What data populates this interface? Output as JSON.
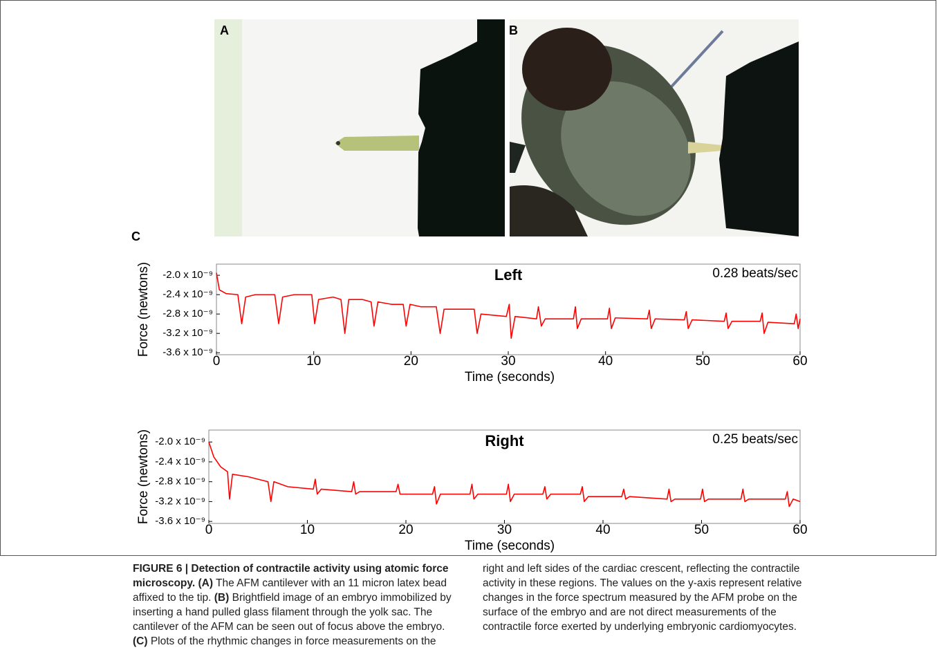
{
  "panels": {
    "a_label": "A",
    "b_label": "B",
    "c_label": "C"
  },
  "chart_data": [
    {
      "type": "line",
      "title": "Left",
      "annotation": "0.28 beats/sec",
      "xlabel": "Time (seconds)",
      "ylabel": "Force (newtons)",
      "color": "#ff0000",
      "xlim": [
        0,
        60
      ],
      "xticks": [
        0,
        10,
        20,
        30,
        40,
        50,
        60
      ],
      "ylim": [
        -3.64e-09,
        -1.77e-09
      ],
      "yticks": [
        {
          "value": -2e-09,
          "label": "-2.0 x 10⁻⁹"
        },
        {
          "value": -2.4e-09,
          "label": "-2.4 x 10⁻⁹"
        },
        {
          "value": -2.8e-09,
          "label": "-2.8 x 10⁻⁹"
        },
        {
          "value": -3.2e-09,
          "label": "-3.2 x 10⁻⁹"
        },
        {
          "value": -3.6e-09,
          "label": "-3.6 x 10⁻⁹"
        }
      ],
      "x": [
        0,
        0.3,
        1,
        2.2,
        2.6,
        3.0,
        4,
        6.0,
        6.4,
        6.8,
        8,
        9.8,
        10.1,
        10.5,
        12,
        12.8,
        13.2,
        13.6,
        15,
        15.9,
        16.2,
        16.6,
        18,
        19.2,
        19.5,
        19.9,
        21,
        22.6,
        23,
        23.4,
        25,
        26.5,
        26.8,
        27.2,
        29.8,
        30.1,
        30.3,
        30.7,
        32.9,
        33.1,
        33.4,
        33.8,
        36.7,
        36.9,
        37.1,
        37.5,
        40.2,
        40.4,
        40.6,
        41,
        44.3,
        44.5,
        44.7,
        45.1,
        48.1,
        48.3,
        48.5,
        48.9,
        52.2,
        52.4,
        52.6,
        53,
        55.9,
        56.1,
        56.3,
        56.7,
        59.4,
        59.6,
        59.8,
        60
      ],
      "values": [
        -1.95e-09,
        -2.3e-09,
        -2.38e-09,
        -2.4e-09,
        -3e-09,
        -2.45e-09,
        -2.4e-09,
        -2.4e-09,
        -3e-09,
        -2.45e-09,
        -2.4e-09,
        -2.4e-09,
        -3e-09,
        -2.5e-09,
        -2.45e-09,
        -2.5e-09,
        -3.2e-09,
        -2.5e-09,
        -2.5e-09,
        -2.55e-09,
        -3.05e-09,
        -2.55e-09,
        -2.6e-09,
        -2.6e-09,
        -3.05e-09,
        -2.6e-09,
        -2.65e-09,
        -2.65e-09,
        -3.2e-09,
        -2.7e-09,
        -2.7e-09,
        -2.7e-09,
        -3.2e-09,
        -2.8e-09,
        -2.85e-09,
        -2.6e-09,
        -3.3e-09,
        -2.85e-09,
        -2.9e-09,
        -2.65e-09,
        -3.05e-09,
        -2.9e-09,
        -2.9e-09,
        -2.65e-09,
        -3.1e-09,
        -2.9e-09,
        -2.9e-09,
        -2.68e-09,
        -3.1e-09,
        -2.88e-09,
        -2.9e-09,
        -2.72e-09,
        -3.1e-09,
        -2.9e-09,
        -2.92e-09,
        -2.75e-09,
        -3.1e-09,
        -2.92e-09,
        -2.95e-09,
        -2.78e-09,
        -3.1e-09,
        -2.95e-09,
        -2.95e-09,
        -2.78e-09,
        -3.2e-09,
        -2.97e-09,
        -3e-09,
        -2.8e-09,
        -3.1e-09,
        -2.9e-09
      ]
    },
    {
      "type": "line",
      "title": "Right",
      "annotation": "0.25 beats/sec",
      "xlabel": "Time (seconds)",
      "ylabel": "Force (newtons)",
      "color": "#ff0000",
      "xlim": [
        0,
        60
      ],
      "xticks": [
        0,
        10,
        20,
        30,
        40,
        50,
        60
      ],
      "ylim": [
        -3.64e-09,
        -1.76e-09
      ],
      "yticks": [
        {
          "value": -2e-09,
          "label": "-2.0 x 10⁻⁹"
        },
        {
          "value": -2.4e-09,
          "label": "-2.4 x 10⁻⁹"
        },
        {
          "value": -2.8e-09,
          "label": "-2.8 x 10⁻⁹"
        },
        {
          "value": -3.2e-09,
          "label": "-3.2 x 10⁻⁹"
        },
        {
          "value": -3.6e-09,
          "label": "-3.6 x 10⁻⁹"
        }
      ],
      "x": [
        0,
        0.5,
        1.2,
        1.9,
        2.1,
        2.4,
        4,
        5,
        6.0,
        6.3,
        6.6,
        8,
        10.6,
        10.8,
        11.0,
        11.4,
        14.5,
        14.7,
        14.9,
        15.3,
        19.0,
        19.2,
        19.4,
        19.8,
        22.7,
        22.9,
        23.1,
        23.5,
        26.5,
        26.7,
        26.9,
        27.3,
        30.2,
        30.4,
        30.6,
        31,
        33.9,
        34.1,
        34.3,
        34.7,
        37.7,
        37.9,
        38.1,
        38.5,
        41.9,
        42.1,
        42.3,
        42.7,
        46.5,
        46.7,
        46.9,
        47.3,
        49.9,
        50.1,
        50.3,
        50.7,
        54,
        54.2,
        54.4,
        54.8,
        58.5,
        58.7,
        58.9,
        59.3,
        60
      ],
      "values": [
        -2e-09,
        -2.3e-09,
        -2.5e-09,
        -2.6e-09,
        -3.15e-09,
        -2.65e-09,
        -2.7e-09,
        -2.75e-09,
        -2.8e-09,
        -3.2e-09,
        -2.8e-09,
        -2.9e-09,
        -2.95e-09,
        -2.75e-09,
        -3.05e-09,
        -2.95e-09,
        -3e-09,
        -2.8e-09,
        -3.05e-09,
        -3e-09,
        -3e-09,
        -2.85e-09,
        -3.05e-09,
        -3.05e-09,
        -3.05e-09,
        -2.9e-09,
        -3.25e-09,
        -3.05e-09,
        -3.05e-09,
        -2.85e-09,
        -3.15e-09,
        -3.05e-09,
        -3.05e-09,
        -2.85e-09,
        -3.2e-09,
        -3.05e-09,
        -3.05e-09,
        -2.9e-09,
        -3.15e-09,
        -3.05e-09,
        -3.05e-09,
        -2.9e-09,
        -3.2e-09,
        -3.1e-09,
        -3.1e-09,
        -2.95e-09,
        -3.15e-09,
        -3.1e-09,
        -3.15e-09,
        -2.95e-09,
        -3.2e-09,
        -3.15e-09,
        -3.15e-09,
        -2.95e-09,
        -3.2e-09,
        -3.15e-09,
        -3.15e-09,
        -2.95e-09,
        -3.2e-09,
        -3.15e-09,
        -3.15e-09,
        -3e-09,
        -3.3e-09,
        -3.15e-09,
        -3.2e-09
      ]
    }
  ],
  "caption": [
    "FIGURE 6 | Detection of contractile activity using atomic force microscopy. (A)",
    " The AFM cantilever with an 11 micron latex bead affixed to the tip. ",
    "(B)",
    " Brightfield image of an embryo immobilized by inserting a hand pulled glass filament through the yolk sac. The cantilever of the AFM can be seen out of focus above the embryo. ",
    "(C)",
    " Plots of the rhythmic changes in force measurements on the right and left sides of the cardiac crescent, reflecting the contractile activity in these regions. The values on the y-axis represent relative changes in the force spectrum measured by the AFM probe on the surface of the embryo and are not direct measurements of the contractile force exerted by underlying embryonic cardiomyocytes."
  ]
}
